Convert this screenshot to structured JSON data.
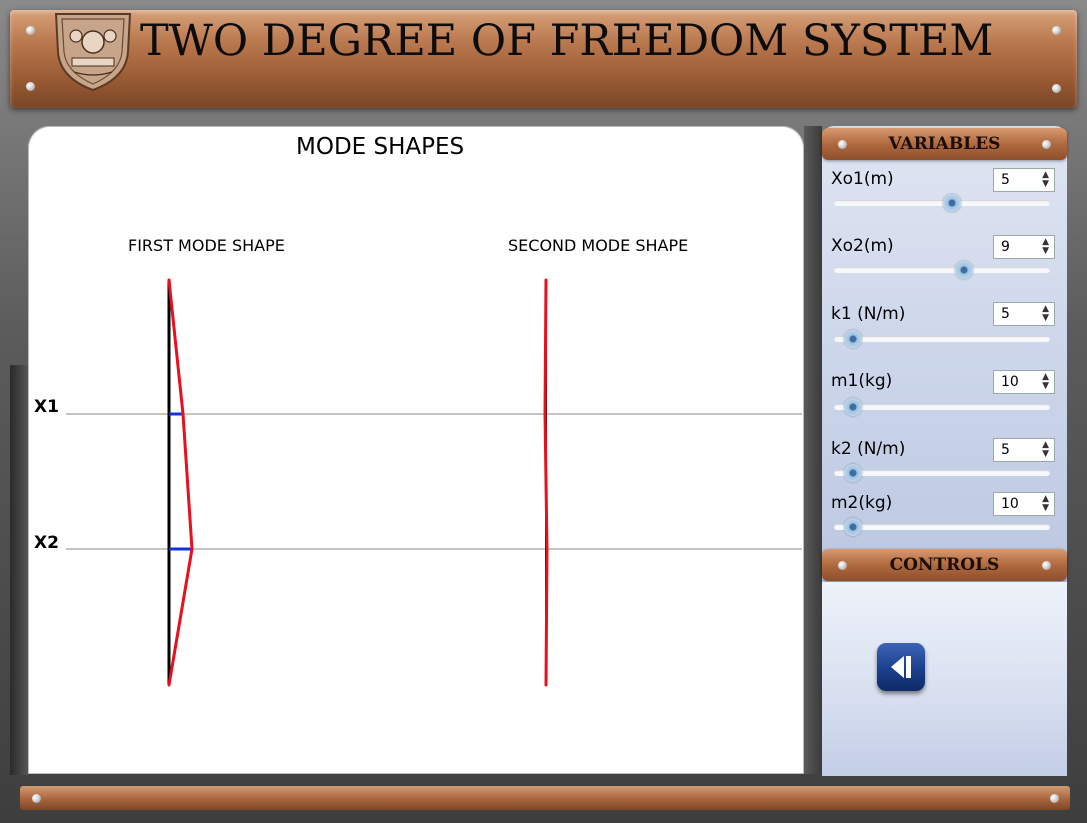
{
  "header": {
    "title": "TWO DEGREE OF FREEDOM SYSTEM"
  },
  "plot": {
    "title": "MODE SHAPES",
    "first_mode_label": "FIRST MODE SHAPE",
    "second_mode_label": "SECOND MODE SHAPE",
    "level_labels": [
      "X1",
      "X2"
    ]
  },
  "variables": {
    "title": "VARIABLES",
    "items": [
      {
        "label": "Xo1(m)",
        "value": "5",
        "slider_fraction": 0.55
      },
      {
        "label": "Xo2(m)",
        "value": "9",
        "slider_fraction": 0.61
      },
      {
        "label": "k1 (N/m)",
        "value": "5",
        "slider_fraction": 0.05
      },
      {
        "label": "m1(kg)",
        "value": "10",
        "slider_fraction": 0.05
      },
      {
        "label": "k2 (N/m)",
        "value": "5",
        "slider_fraction": 0.05
      },
      {
        "label": "m2(kg)",
        "value": "10",
        "slider_fraction": 0.05
      }
    ]
  },
  "controls": {
    "title": "CONTROLS",
    "back_icon": "step-back-icon"
  },
  "colors": {
    "mode_line": "#e8101c",
    "axis_line": "#000000",
    "displacement": "#1430d8",
    "panel_wood": "#a8653d"
  }
}
